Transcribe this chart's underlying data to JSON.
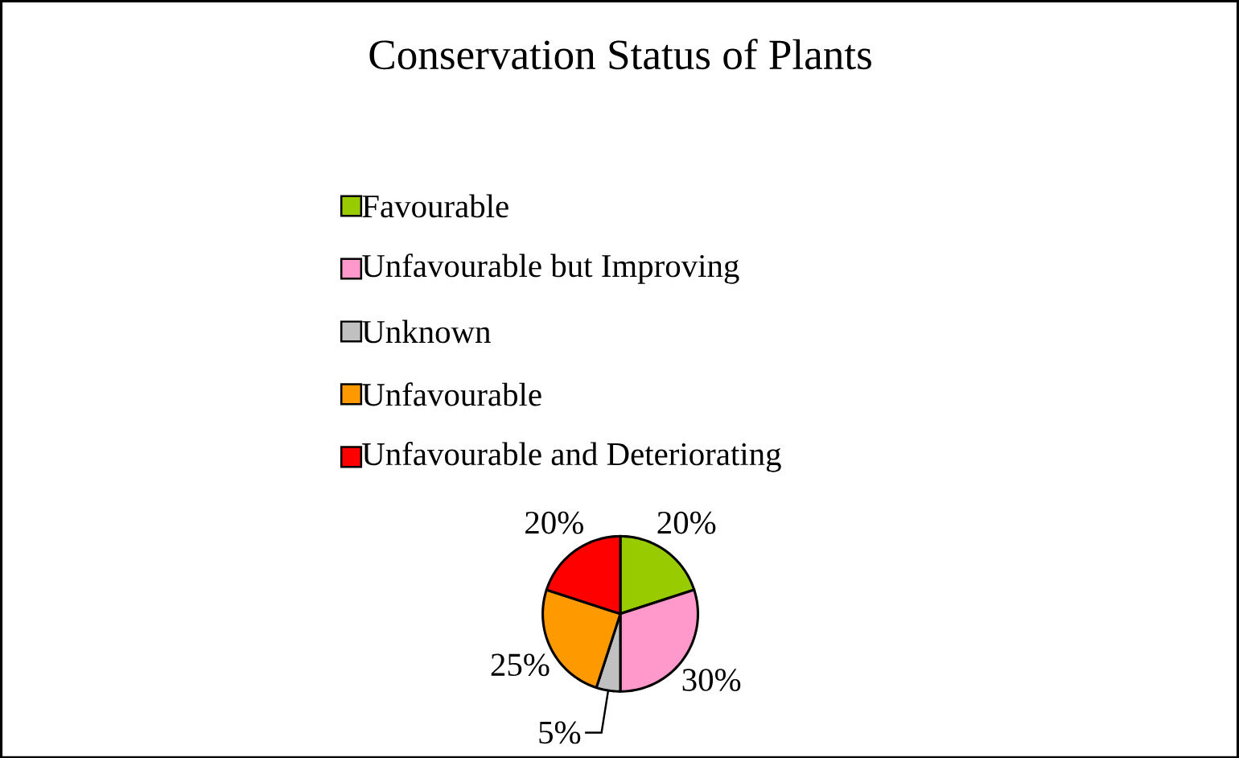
{
  "chart_data": {
    "type": "pie",
    "title": "Conservation Status of Plants",
    "categories": [
      "Favourable",
      "Unfavourable but Improving",
      "Unknown",
      "Unfavourable",
      "Unfavourable and Deteriorating"
    ],
    "values": [
      20,
      30,
      5,
      25,
      20
    ],
    "colors": [
      "#99cc00",
      "#ff99cc",
      "#c0c0c0",
      "#ff9900",
      "#ff0000"
    ],
    "value_labels": [
      "20%",
      "30%",
      "5%",
      "25%",
      "20%"
    ],
    "legend": "top"
  }
}
